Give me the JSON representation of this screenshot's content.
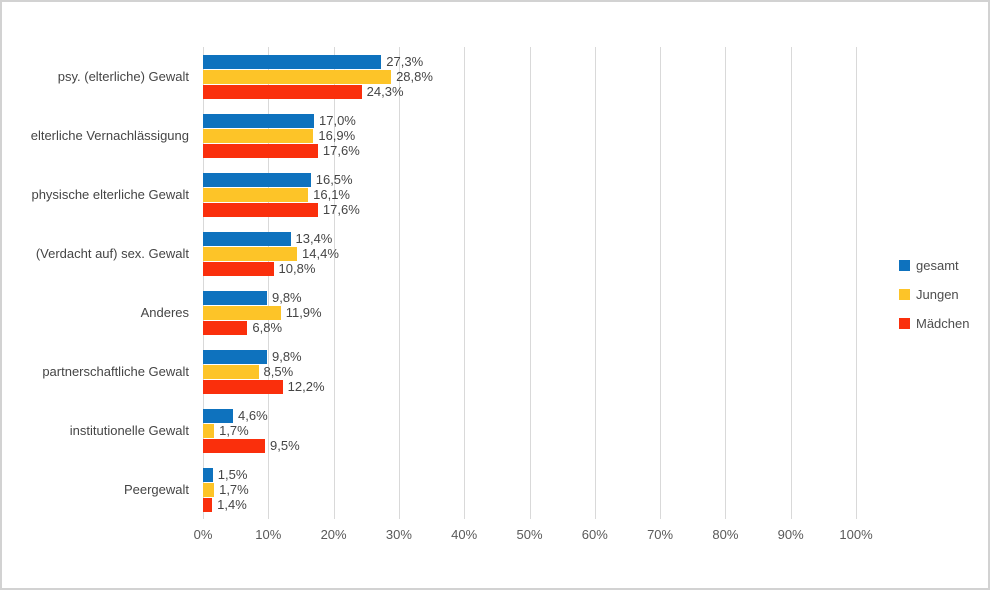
{
  "chart_data": {
    "type": "bar",
    "orientation": "horizontal",
    "title": "",
    "categories": [
      "psy. (elterliche) Gewalt",
      "elterliche Vernachlässigung",
      "physische elterliche Gewalt",
      "(Verdacht auf) sex. Gewalt",
      "Anderes",
      "partnerschaftliche Gewalt",
      "institutionelle Gewalt",
      "Peergewalt"
    ],
    "series": [
      {
        "name": "gesamt",
        "color": "#0e72be",
        "values": [
          27.3,
          17.0,
          16.5,
          13.4,
          9.8,
          9.8,
          4.6,
          1.5
        ],
        "labels": [
          "27,3%",
          "17,0%",
          "16,5%",
          "13,4%",
          "9,8%",
          "9,8%",
          "4,6%",
          "1,5%"
        ]
      },
      {
        "name": "Jungen",
        "color": "#fdc428",
        "values": [
          28.8,
          16.9,
          16.1,
          14.4,
          11.9,
          8.5,
          1.7,
          1.7
        ],
        "labels": [
          "28,8%",
          "16,9%",
          "16,1%",
          "14,4%",
          "11,9%",
          "8,5%",
          "1,7%",
          "1,7%"
        ]
      },
      {
        "name": "Mädchen",
        "color": "#fa2f0c",
        "values": [
          24.3,
          17.6,
          17.6,
          10.8,
          6.8,
          12.2,
          9.5,
          1.4
        ],
        "labels": [
          "24,3%",
          "17,6%",
          "17,6%",
          "10,8%",
          "6,8%",
          "12,2%",
          "9,5%",
          "1,4%"
        ]
      }
    ],
    "x_axis": {
      "min": 0,
      "max": 100,
      "tick_labels": [
        "0%",
        "10%",
        "20%",
        "30%",
        "40%",
        "50%",
        "60%",
        "70%",
        "80%",
        "90%",
        "100%"
      ],
      "grid": true,
      "gridline_color": "#d9d9d9"
    },
    "legend": {
      "position": "right",
      "entries": [
        "gesamt",
        "Jungen",
        "Mädchen"
      ]
    },
    "text_color": "#454545",
    "axis_text_color": "#595959"
  }
}
